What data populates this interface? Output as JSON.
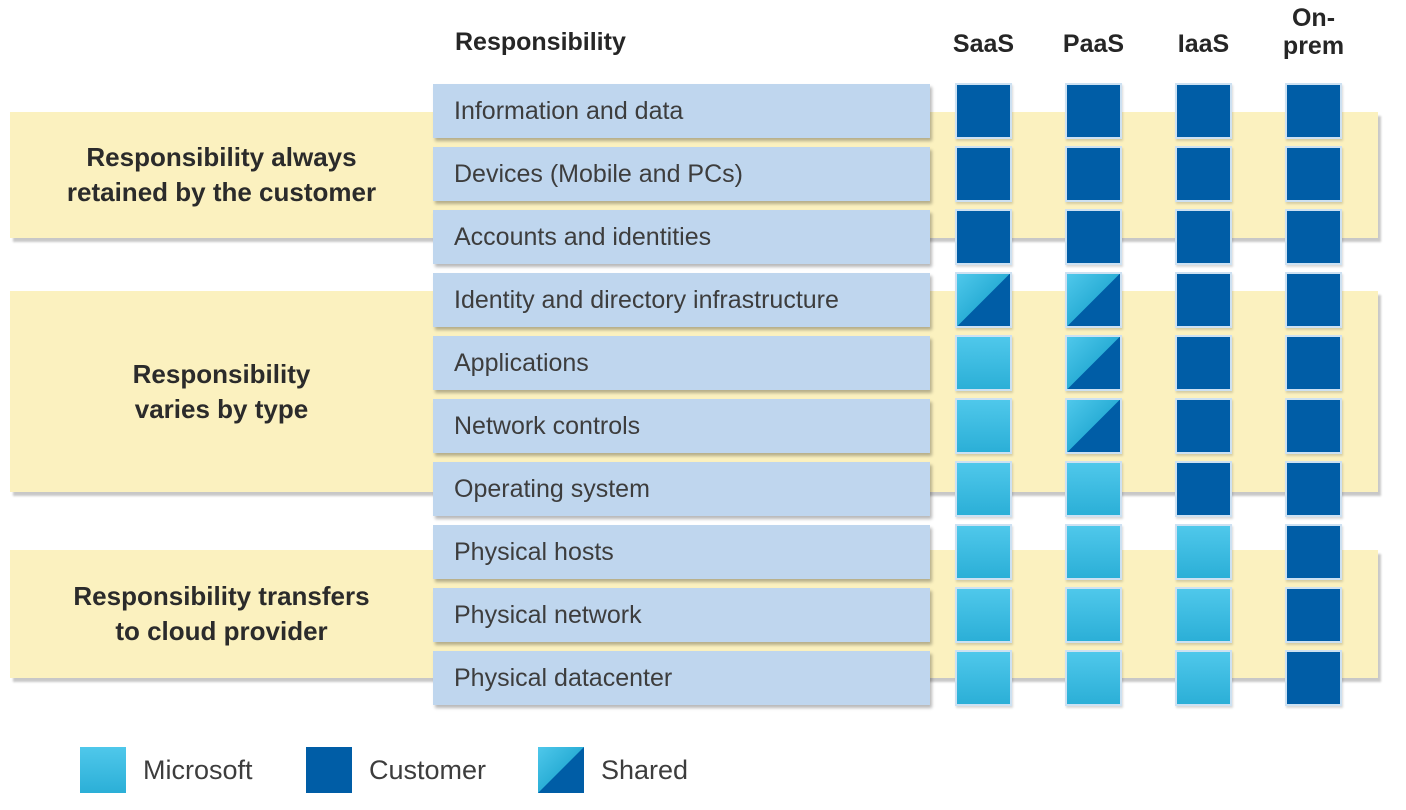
{
  "header": {
    "row_label_column": "Responsibility",
    "service_columns": [
      "SaaS",
      "PaaS",
      "IaaS",
      "On-\nprem"
    ]
  },
  "groups": [
    {
      "label": "Responsibility always\nretained by the customer"
    },
    {
      "label": "Responsibility\nvaries by type"
    },
    {
      "label": "Responsibility transfers\nto cloud provider"
    }
  ],
  "matrix": {
    "rows": [
      {
        "label": "Information and data",
        "group": 0,
        "cells": [
          "customer",
          "customer",
          "customer",
          "customer"
        ]
      },
      {
        "label": "Devices (Mobile and PCs)",
        "group": 0,
        "cells": [
          "customer",
          "customer",
          "customer",
          "customer"
        ]
      },
      {
        "label": "Accounts and identities",
        "group": 0,
        "cells": [
          "customer",
          "customer",
          "customer",
          "customer"
        ]
      },
      {
        "label": "Identity and directory infrastructure",
        "group": 1,
        "cells": [
          "shared",
          "shared",
          "customer",
          "customer"
        ]
      },
      {
        "label": "Applications",
        "group": 1,
        "cells": [
          "microsoft",
          "shared",
          "customer",
          "customer"
        ]
      },
      {
        "label": "Network controls",
        "group": 1,
        "cells": [
          "microsoft",
          "shared",
          "customer",
          "customer"
        ]
      },
      {
        "label": "Operating system",
        "group": 1,
        "cells": [
          "microsoft",
          "microsoft",
          "customer",
          "customer"
        ]
      },
      {
        "label": "Physical hosts",
        "group": 2,
        "cells": [
          "microsoft",
          "microsoft",
          "microsoft",
          "customer"
        ]
      },
      {
        "label": "Physical network",
        "group": 2,
        "cells": [
          "microsoft",
          "microsoft",
          "microsoft",
          "customer"
        ]
      },
      {
        "label": "Physical datacenter",
        "group": 2,
        "cells": [
          "microsoft",
          "microsoft",
          "microsoft",
          "customer"
        ]
      }
    ]
  },
  "legend": [
    {
      "label": "Microsoft",
      "type": "microsoft"
    },
    {
      "label": "Customer",
      "type": "customer"
    },
    {
      "label": "Shared",
      "type": "shared"
    }
  ],
  "colors": {
    "customer_blue": "#005da6",
    "microsoft_cyan_top": "#4fc8eb",
    "microsoft_cyan_bottom": "#2bafd7",
    "band_yellow": "#fbf1bf",
    "row_blue": "#bfd6ee"
  }
}
